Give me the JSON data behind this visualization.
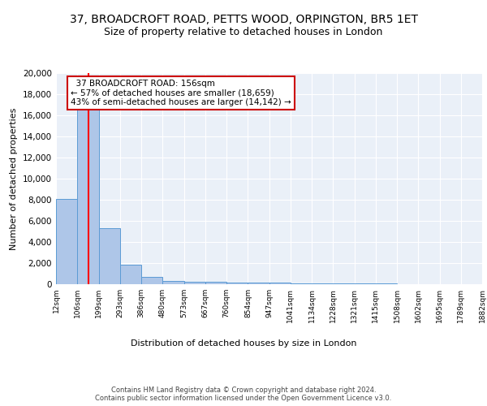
{
  "title1": "37, BROADCROFT ROAD, PETTS WOOD, ORPINGTON, BR5 1ET",
  "title2": "Size of property relative to detached houses in London",
  "xlabel": "Distribution of detached houses by size in London",
  "ylabel": "Number of detached properties",
  "bin_edges": [
    12,
    106,
    199,
    293,
    386,
    480,
    573,
    667,
    760,
    854,
    947,
    1041,
    1134,
    1228,
    1321,
    1415,
    1508,
    1602,
    1695,
    1789,
    1882
  ],
  "bar_heights": [
    8100,
    16600,
    5300,
    1850,
    700,
    300,
    230,
    200,
    170,
    150,
    120,
    100,
    80,
    70,
    55,
    45,
    35,
    25,
    20,
    15
  ],
  "bar_color": "#aec6e8",
  "bar_edge_color": "#5b9bd5",
  "bg_color": "#eaf0f8",
  "grid_color": "#ffffff",
  "red_line_x": 156,
  "annotation_text": "  37 BROADCROFT ROAD: 156sqm  \n← 57% of detached houses are smaller (18,659)\n43% of semi-detached houses are larger (14,142) →",
  "annotation_box_color": "#ffffff",
  "annotation_box_edge": "#cc0000",
  "ylim": [
    0,
    20000
  ],
  "yticks": [
    0,
    2000,
    4000,
    6000,
    8000,
    10000,
    12000,
    14000,
    16000,
    18000,
    20000
  ],
  "footer_text": "Contains HM Land Registry data © Crown copyright and database right 2024.\nContains public sector information licensed under the Open Government Licence v3.0.",
  "title1_fontsize": 10,
  "title2_fontsize": 9,
  "ylabel_fontsize": 8,
  "xlabel_fontsize": 8,
  "tick_fontsize": 6.5,
  "ytick_fontsize": 7.5,
  "annotation_fontsize": 7.5,
  "footer_fontsize": 6.0
}
